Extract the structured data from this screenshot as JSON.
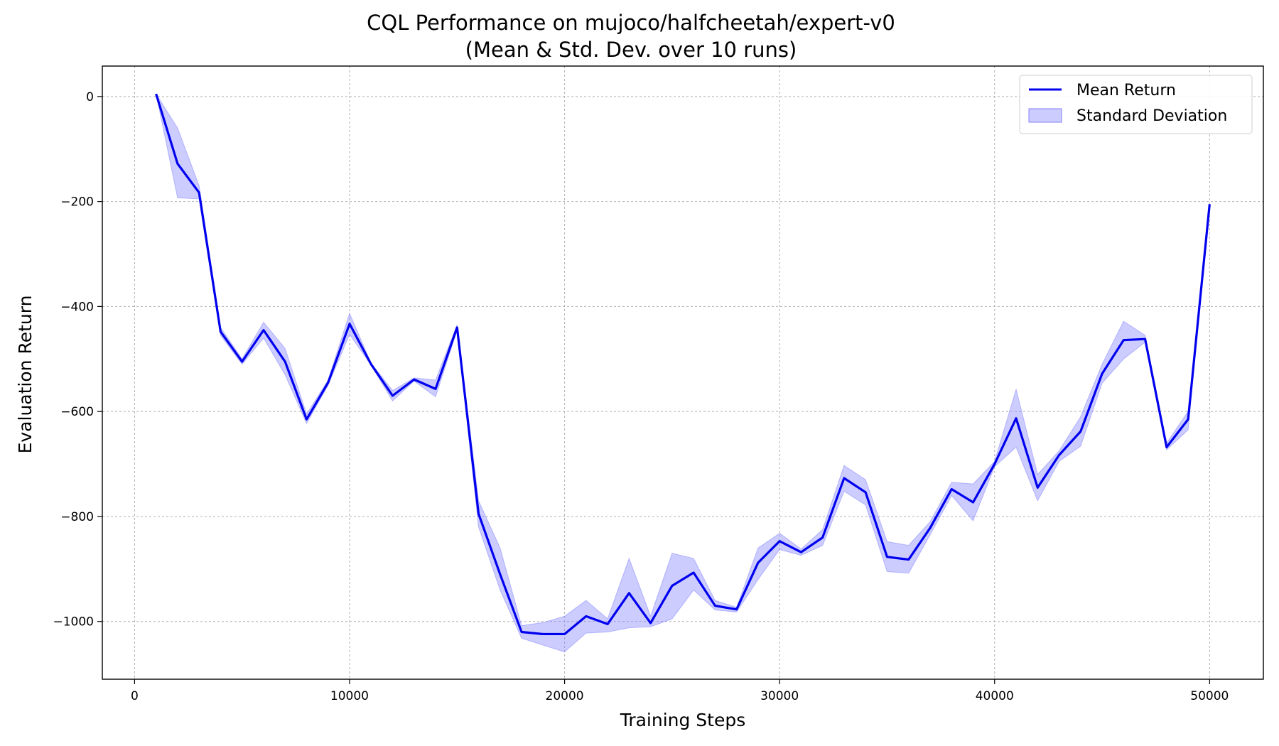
{
  "chart_data": {
    "type": "line",
    "title": "CQL Performance on mujoco/halfcheetah/expert-v0",
    "subtitle": "(Mean & Std. Dev. over 10 runs)",
    "xlabel": "Training Steps",
    "ylabel": "Evaluation Return",
    "xlim": [
      -1500,
      52500
    ],
    "ylim": [
      -1110,
      58
    ],
    "xticks": [
      0,
      10000,
      20000,
      30000,
      40000,
      50000
    ],
    "yticks": [
      0,
      -200,
      -400,
      -600,
      -800,
      -1000
    ],
    "xtick_labels": [
      "0",
      "10000",
      "20000",
      "30000",
      "40000",
      "50000"
    ],
    "ytick_labels": [
      "0",
      "−200",
      "−400",
      "−600",
      "−800",
      "−1000"
    ],
    "grid": true,
    "legend_position": "top-right",
    "x": [
      1000,
      2000,
      3000,
      4000,
      5000,
      6000,
      7000,
      8000,
      9000,
      10000,
      11000,
      12000,
      13000,
      14000,
      15000,
      16000,
      17000,
      18000,
      19000,
      20000,
      21000,
      22000,
      23000,
      24000,
      25000,
      26000,
      27000,
      28000,
      29000,
      30000,
      31000,
      32000,
      33000,
      34000,
      35000,
      36000,
      37000,
      38000,
      39000,
      40000,
      41000,
      42000,
      43000,
      44000,
      45000,
      46000,
      47000,
      48000,
      49000,
      50000
    ],
    "series": [
      {
        "name": "Mean Return",
        "color": "#0000ee",
        "values": [
          5,
          -128,
          -183,
          -448,
          -505,
          -445,
          -505,
          -615,
          -545,
          -433,
          -510,
          -570,
          -539,
          -557,
          -440,
          -795,
          -910,
          -1020,
          -1024,
          -1024,
          -990,
          -1005,
          -946,
          -1003,
          -932,
          -907,
          -970,
          -977,
          -888,
          -847,
          -868,
          -840,
          -727,
          -754,
          -877,
          -882,
          -822,
          -748,
          -773,
          -700,
          -613,
          -745,
          -683,
          -638,
          -528,
          -464,
          -462,
          -668,
          -615,
          -205
        ]
      }
    ],
    "band": {
      "name": "Standard Deviation",
      "color": "#8080ff",
      "upper": [
        5,
        -60,
        -170,
        -440,
        -500,
        -430,
        -480,
        -605,
        -540,
        -413,
        -508,
        -560,
        -536,
        -540,
        -435,
        -770,
        -860,
        -1008,
        -1002,
        -990,
        -960,
        -995,
        -880,
        -990,
        -870,
        -880,
        -960,
        -973,
        -860,
        -832,
        -862,
        -825,
        -703,
        -730,
        -848,
        -855,
        -810,
        -735,
        -738,
        -695,
        -558,
        -720,
        -675,
        -610,
        -510,
        -428,
        -455,
        -660,
        -600,
        -205
      ],
      "lower": [
        5,
        -193,
        -195,
        -455,
        -510,
        -460,
        -530,
        -623,
        -550,
        -453,
        -512,
        -580,
        -542,
        -572,
        -445,
        -820,
        -940,
        -1032,
        -1045,
        -1058,
        -1022,
        -1020,
        -1012,
        -1010,
        -995,
        -940,
        -978,
        -982,
        -920,
        -863,
        -874,
        -855,
        -752,
        -778,
        -905,
        -908,
        -835,
        -760,
        -808,
        -705,
        -668,
        -770,
        -695,
        -666,
        -546,
        -500,
        -468,
        -673,
        -635,
        -205
      ]
    }
  }
}
